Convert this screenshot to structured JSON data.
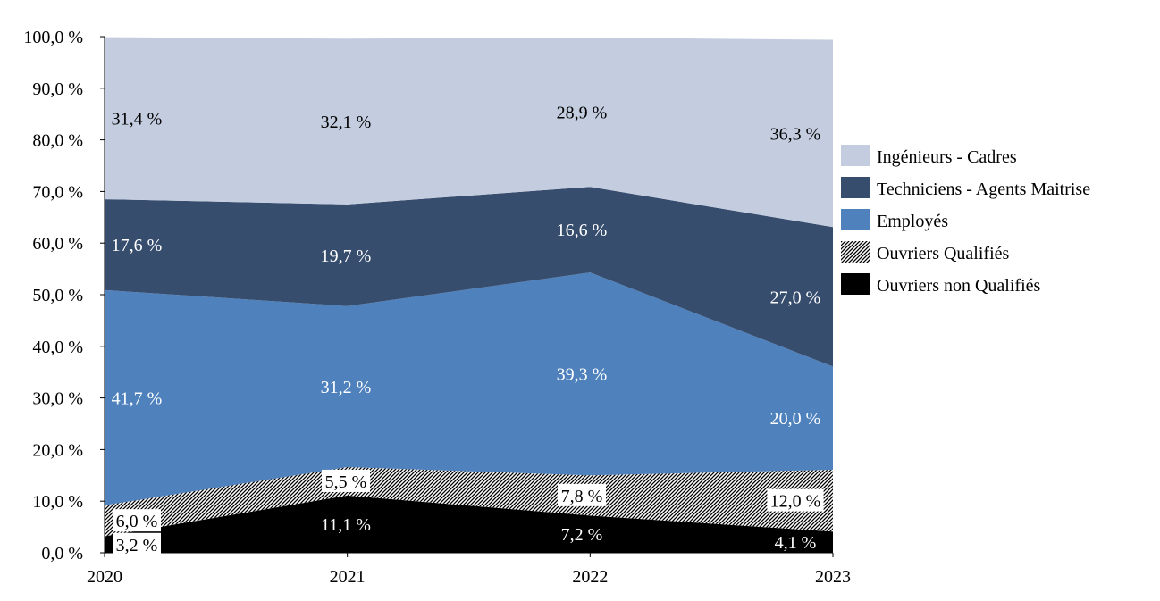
{
  "chart_data": {
    "type": "area",
    "stacked": true,
    "x": [
      "2020",
      "2021",
      "2022",
      "2023"
    ],
    "ylim": [
      0,
      100
    ],
    "yticks": [
      "0,0 %",
      "10,0 %",
      "20,0 %",
      "30,0 %",
      "40,0 %",
      "50,0 %",
      "60,0 %",
      "70,0 %",
      "80,0 %",
      "90,0 %",
      "100,0 %"
    ],
    "legend_position": "right",
    "series": [
      {
        "name": "Ouvriers non Qualifiés",
        "values": [
          3.2,
          11.1,
          7.2,
          4.1
        ],
        "labels": [
          "3,2 %",
          "11,1 %",
          "7,2 %",
          "4,1 %"
        ],
        "color": "#000000",
        "pattern": "solid"
      },
      {
        "name": "Ouvriers Qualifiés",
        "values": [
          6.0,
          5.5,
          7.8,
          12.0
        ],
        "labels": [
          "6,0 %",
          "5,5 %",
          "7,8 %",
          "12,0 %"
        ],
        "color": "#000000",
        "pattern": "hatched"
      },
      {
        "name": "Employés",
        "values": [
          41.7,
          31.2,
          39.3,
          20.0
        ],
        "labels": [
          "41,7 %",
          "31,2 %",
          "39,3 %",
          "20,0 %"
        ],
        "color": "#4f81bd",
        "pattern": "solid"
      },
      {
        "name": "Techniciens - Agents Maitrise",
        "values": [
          17.6,
          19.7,
          16.6,
          27.0
        ],
        "labels": [
          "17,6 %",
          "19,7 %",
          "16,6 %",
          "27,0 %"
        ],
        "color": "#374d6e",
        "pattern": "solid"
      },
      {
        "name": "Ingénieurs - Cadres",
        "values": [
          31.4,
          32.1,
          28.9,
          36.3
        ],
        "labels": [
          "31,4 %",
          "32,1 %",
          "28,9 %",
          "36,3 %"
        ],
        "color": "#c4cde0",
        "pattern": "solid"
      }
    ]
  }
}
